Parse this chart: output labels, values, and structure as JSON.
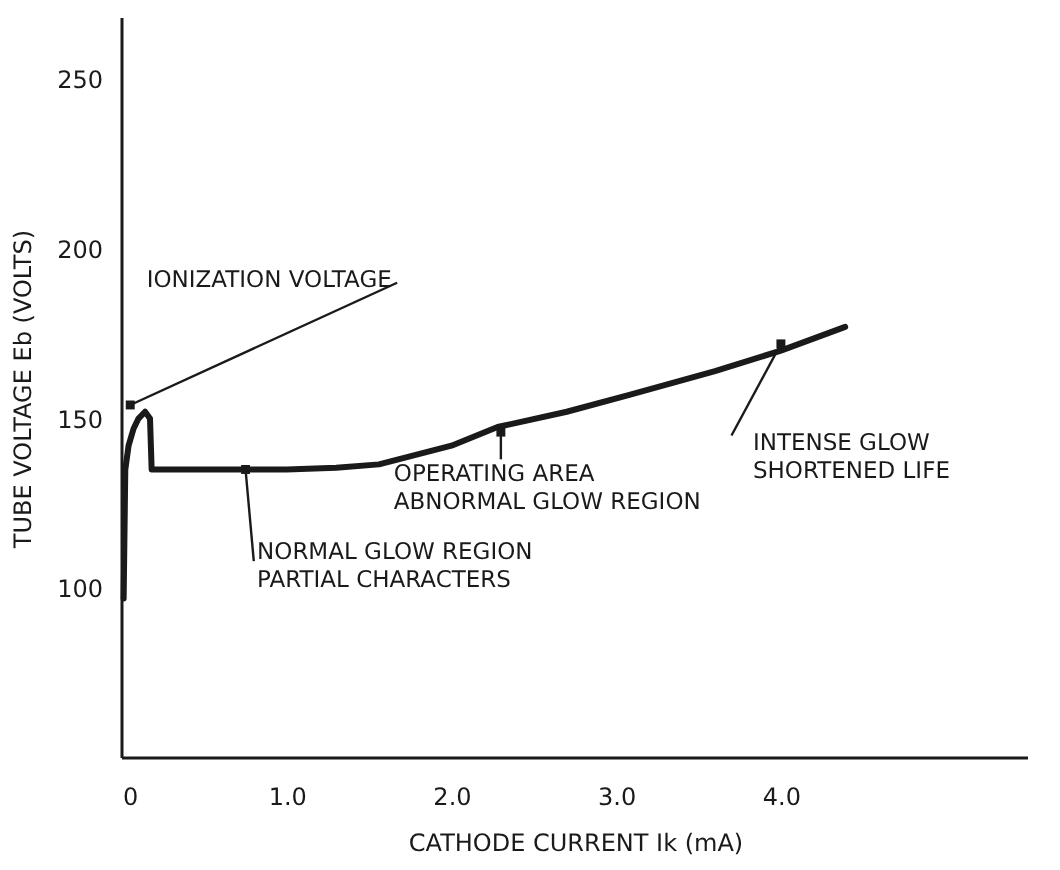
{
  "chart_data": {
    "type": "line",
    "xlabel": "CATHODE CURRENT Ik (mA)",
    "ylabel": "TUBE VOLTAGE Eb (VOLTS)",
    "x": [
      0.01,
      0.02,
      0.04,
      0.07,
      0.1,
      0.14,
      0.17,
      0.18,
      0.3,
      0.6,
      1.0,
      1.3,
      1.56,
      2.0,
      2.28,
      2.7,
      3.08,
      3.6,
      4.0,
      4.39
    ],
    "series": [
      {
        "color": "#1a1a1a",
        "values": [
          97,
          135,
          142,
          147,
          150,
          152,
          150,
          135,
          135,
          135,
          135,
          135.5,
          136.5,
          142,
          147.5,
          152,
          157,
          164,
          170,
          177
        ]
      }
    ],
    "xlim": [
      0,
      5.5
    ],
    "ylim": [
      50,
      268
    ],
    "xticks": [
      0,
      {
        "value": 1,
        "label": "1.0"
      },
      {
        "value": 2,
        "label": "2.0"
      },
      {
        "value": 3,
        "label": "3.0"
      },
      {
        "value": 4,
        "label": "4.0"
      }
    ],
    "yticks": [
      100,
      150,
      200,
      250
    ],
    "grid": false,
    "marker": "none",
    "line_style": "solid",
    "annotations": [
      {
        "text": "IONIZATION VOLTAGE",
        "x": 0.05,
        "y": 154
      },
      {
        "text": "NORMAL GLOW REGION\nPARTIAL CHARACTERS",
        "x": 0.75,
        "y": 135
      },
      {
        "text": "OPERATING AREA\nABNORMAL GLOW REGION",
        "x": 2.3,
        "y": 146
      },
      {
        "text": "INTENSE GLOW\nSHORTENED LIFE",
        "x": 4.0,
        "y": 172
      }
    ]
  }
}
